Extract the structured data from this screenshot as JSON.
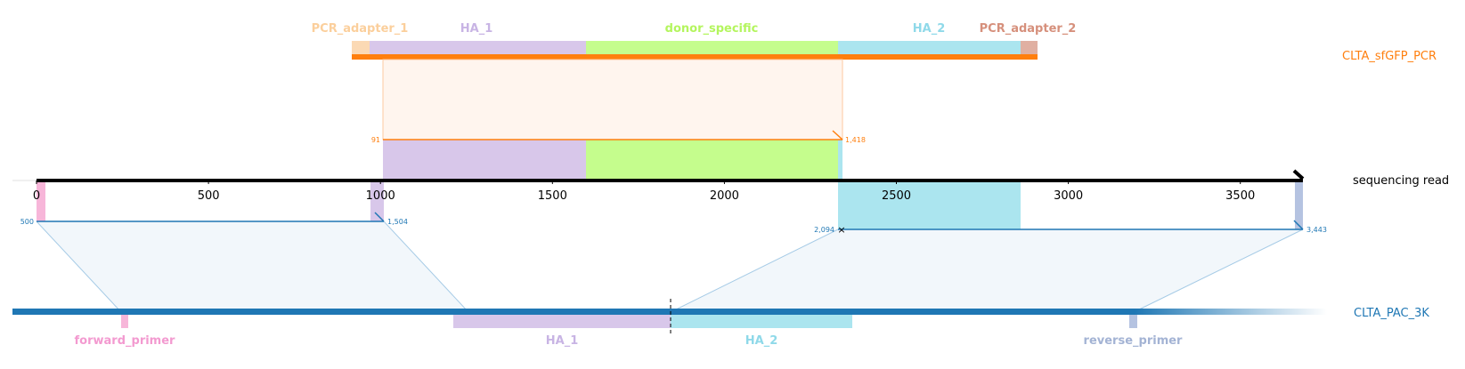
{
  "colors": {
    "adapter1": "#fbd9b4",
    "ha1": "#d8c7ea",
    "donor": "#c5fd8d",
    "ha2": "#abe5ef",
    "adapter2": "#e0b0a2",
    "orange": "#ff7f0e",
    "blue": "#1f77b4",
    "forward_primer": "#f7b6d9",
    "reverse_primer": "#b5c3e1",
    "ha1_label": "#c8b4e4",
    "ha2_label": "#8fd9e9",
    "adapter1_label": "#fbcf9c",
    "adapter2_label": "#d6907c",
    "donor_label": "#b4f55e",
    "fwd_label": "#f39ad0",
    "rev_label": "#a3b3d4"
  },
  "tracks": {
    "top": {
      "label": "CLTA_sfGFP_PCR"
    },
    "middle": {
      "label": "sequencing read"
    },
    "bottom": {
      "label": "CLTA_PAC_3K"
    }
  },
  "top_features": [
    {
      "id": "pcr_adapter_1",
      "label": "PCR_adapter_1"
    },
    {
      "id": "ha_1",
      "label": "HA_1"
    },
    {
      "id": "donor_specific",
      "label": "donor_specific"
    },
    {
      "id": "ha_2",
      "label": "HA_2"
    },
    {
      "id": "pcr_adapter_2",
      "label": "PCR_adapter_2"
    }
  ],
  "bottom_features": [
    {
      "id": "forward_primer",
      "label": "forward_primer"
    },
    {
      "id": "ha_1",
      "label": "HA_1"
    },
    {
      "id": "ha_2",
      "label": "HA_2"
    },
    {
      "id": "reverse_primer",
      "label": "reverse_primer"
    }
  ],
  "axis": {
    "min": 0,
    "max": 3682,
    "ticks": [
      {
        "value": 0,
        "label": "0"
      },
      {
        "value": 500,
        "label": "500"
      },
      {
        "value": 1000,
        "label": "1000"
      },
      {
        "value": 1500,
        "label": "1500"
      },
      {
        "value": 2000,
        "label": "2000"
      },
      {
        "value": 2500,
        "label": "2500"
      },
      {
        "value": 3000,
        "label": "3000"
      },
      {
        "value": 3500,
        "label": "3500"
      }
    ]
  },
  "alignments": {
    "top": {
      "start_label": "91",
      "end_label": "1,418"
    },
    "bottom_left": {
      "start_label": "500",
      "end_label": "1,504"
    },
    "bottom_right": {
      "start_label": "2,094",
      "end_label": "3,443"
    }
  }
}
